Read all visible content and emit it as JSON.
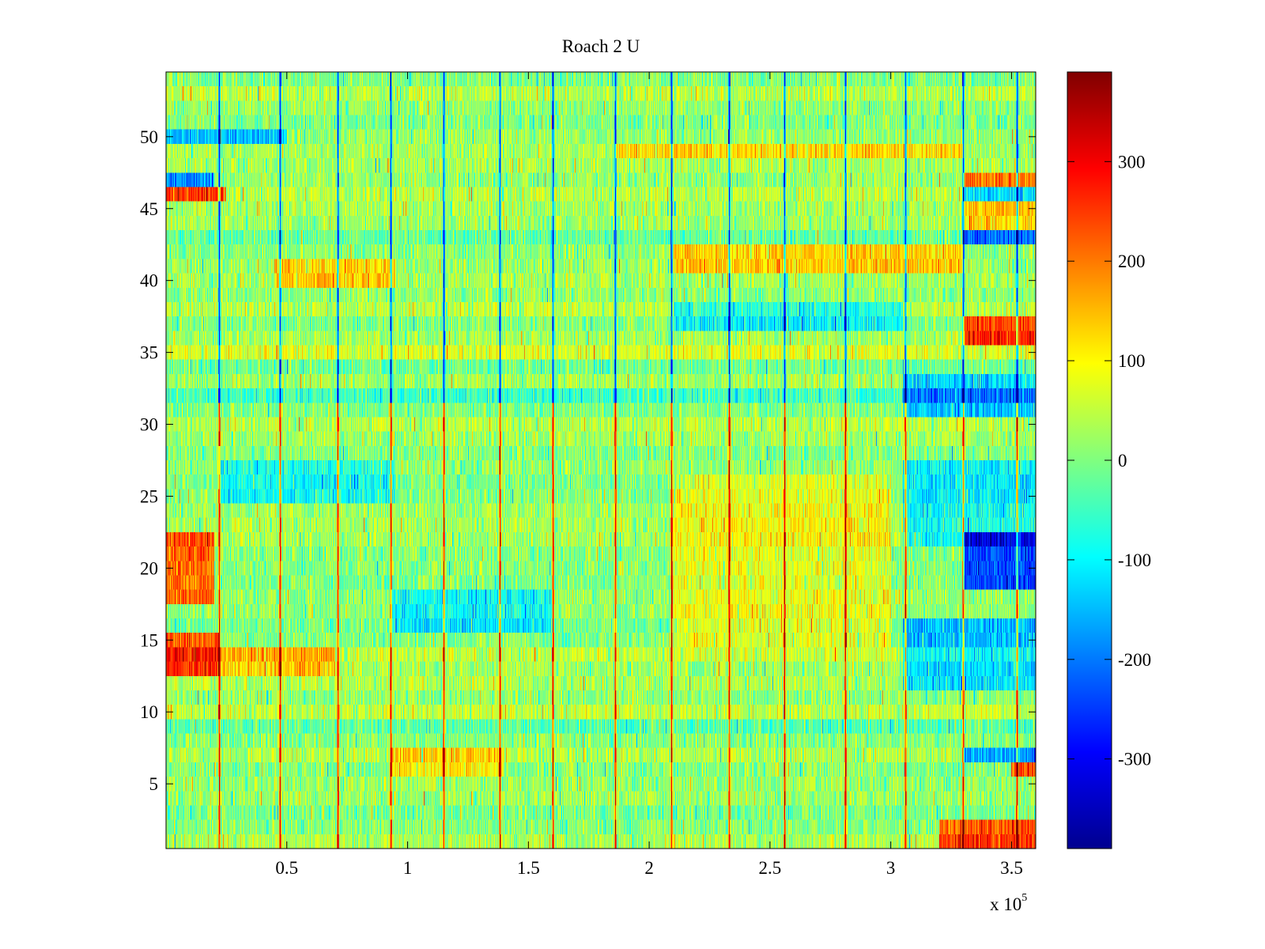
{
  "chart_data": {
    "type": "heatmap",
    "title": "Roach 2 U",
    "xlabel": "",
    "ylabel": "",
    "x_scale_label": "x 10",
    "x_scale_exponent": "5",
    "xlim": [
      0,
      3.6
    ],
    "ylim": [
      0.5,
      54.5
    ],
    "n_rows": 54,
    "x_ticks": [
      0.5,
      1,
      1.5,
      2,
      2.5,
      3,
      3.5
    ],
    "x_tick_labels": [
      "0.5",
      "1",
      "1.5",
      "2",
      "2.5",
      "3",
      "3.5"
    ],
    "y_ticks": [
      5,
      10,
      15,
      20,
      25,
      30,
      35,
      40,
      45,
      50
    ],
    "y_tick_labels": [
      "5",
      "10",
      "15",
      "20",
      "25",
      "30",
      "35",
      "40",
      "45",
      "50"
    ],
    "colorbar": {
      "colormap": "jet",
      "clim": [
        -390,
        390
      ],
      "ticks": [
        300,
        200,
        100,
        0,
        -100,
        -200,
        -300
      ],
      "tick_labels": [
        "300",
        "200",
        "100",
        "0",
        "-100",
        "-200",
        "-300"
      ]
    },
    "grid": false,
    "events_x": [
      0.22,
      0.47,
      0.71,
      0.93,
      1.15,
      1.38,
      1.6,
      1.86,
      2.09,
      2.33,
      2.56,
      2.81,
      3.06,
      3.3,
      3.52
    ],
    "row_offsets": [
      {
        "rows": [
          1,
          2
        ],
        "x_range": [
          3.2,
          3.6
        ],
        "value": 220
      },
      {
        "rows": [
          6,
          7
        ],
        "x_range": [
          0.93,
          1.4
        ],
        "value": 100
      },
      {
        "rows": [
          6
        ],
        "x_range": [
          3.5,
          3.6
        ],
        "value": 230
      },
      {
        "rows": [
          7
        ],
        "x_range": [
          3.3,
          3.6
        ],
        "value": -200
      },
      {
        "rows": [
          13,
          14,
          15
        ],
        "x_range": [
          0,
          0.22
        ],
        "value": 230
      },
      {
        "rows": [
          13,
          14
        ],
        "x_range": [
          0.22,
          0.7
        ],
        "value": 110
      },
      {
        "rows": [
          12,
          13,
          14,
          15,
          16
        ],
        "x_range": [
          3.05,
          3.6
        ],
        "value": -150
      },
      {
        "rows": [
          16,
          17,
          18
        ],
        "x_range": [
          0.93,
          1.6
        ],
        "value": -110
      },
      {
        "rows": [
          18,
          19,
          20,
          21,
          22
        ],
        "x_range": [
          0,
          0.2
        ],
        "value": 210
      },
      {
        "rows": [
          19,
          20,
          21,
          22
        ],
        "x_range": [
          3.3,
          3.6
        ],
        "value": -240
      },
      {
        "rows": [
          22,
          23,
          24,
          25,
          26,
          27
        ],
        "x_range": [
          3.05,
          3.6
        ],
        "value": -110
      },
      {
        "rows": [
          15,
          16,
          17,
          18,
          19,
          20,
          21,
          22,
          23,
          24,
          25,
          26
        ],
        "x_range": [
          2.09,
          3.0
        ],
        "value": 70
      },
      {
        "rows": [
          25,
          26,
          27
        ],
        "x_range": [
          0.22,
          0.95
        ],
        "value": -90
      },
      {
        "rows": [
          32
        ],
        "x_range": [
          0,
          3.6
        ],
        "value": -60
      },
      {
        "rows": [
          31,
          32,
          33
        ],
        "x_range": [
          3.05,
          3.6
        ],
        "value": -150
      },
      {
        "rows": [
          36,
          37
        ],
        "x_range": [
          3.3,
          3.6
        ],
        "value": 240
      },
      {
        "rows": [
          37,
          38
        ],
        "x_range": [
          2.1,
          3.05
        ],
        "value": -110
      },
      {
        "rows": [
          40,
          41
        ],
        "x_range": [
          0.45,
          0.95
        ],
        "value": 110
      },
      {
        "rows": [
          41,
          42
        ],
        "x_range": [
          2.1,
          3.3
        ],
        "value": 120
      },
      {
        "rows": [
          43
        ],
        "x_range": [
          3.3,
          3.6
        ],
        "value": -190
      },
      {
        "rows": [
          44,
          45
        ],
        "x_range": [
          3.3,
          3.6
        ],
        "value": 110
      },
      {
        "rows": [
          46
        ],
        "x_range": [
          0,
          0.25
        ],
        "value": 210
      },
      {
        "rows": [
          46
        ],
        "x_range": [
          3.3,
          3.6
        ],
        "value": -170
      },
      {
        "rows": [
          47
        ],
        "x_range": [
          0,
          0.2
        ],
        "value": -200
      },
      {
        "rows": [
          47
        ],
        "x_range": [
          3.3,
          3.6
        ],
        "value": 190
      },
      {
        "rows": [
          49
        ],
        "x_range": [
          1.86,
          3.3
        ],
        "value": 90
      },
      {
        "rows": [
          50
        ],
        "x_range": [
          0,
          0.5
        ],
        "value": -160
      }
    ]
  }
}
